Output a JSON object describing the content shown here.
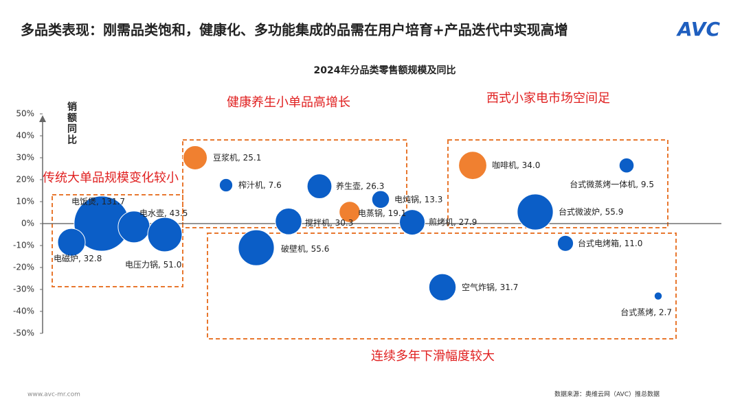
{
  "header": {
    "title": "多品类表现：刚需品类饱和，健康化、多功能集成的品需在用户培育+产品迭代中实现高增",
    "logo": "AVC"
  },
  "footer": {
    "url": "www.avc-mr.com",
    "source": "数据来源：奥维云网（AVC）推总数据"
  },
  "chart_data": {
    "type": "bubble",
    "title": "2024年分品类零售额规模及同比",
    "y_label": "销额同比",
    "annotations": [
      "健康养生小单品高增长",
      "西式小家电市场空间足",
      "传统大单品规模变化较小",
      "连续多年下滑幅度较大"
    ],
    "ylim": [
      -50,
      50
    ],
    "yticks": [
      {
        "value": -50,
        "label": "-50%"
      },
      {
        "value": -40,
        "label": "-40%"
      },
      {
        "value": -30,
        "label": "-30%"
      },
      {
        "value": -20,
        "label": "-20%"
      },
      {
        "value": -10,
        "label": "-10%"
      },
      {
        "value": 0,
        "label": "0%"
      },
      {
        "value": 10,
        "label": "10%"
      },
      {
        "value": 20,
        "label": "20%"
      },
      {
        "value": 30,
        "label": "30%"
      },
      {
        "value": 40,
        "label": "40%"
      },
      {
        "value": 50,
        "label": "50%"
      }
    ],
    "categories": [
      "电饭煲",
      "电水壶",
      "电磁炉",
      "电压力锅",
      "豆浆机",
      "榨汁机",
      "养生壶",
      "电炖锅",
      "电蒸锅",
      "搅拌机",
      "煎烤机",
      "破壁机",
      "空气炸锅",
      "咖啡机",
      "台式微蒸烤一体机",
      "台式微波炉",
      "台式电烤箱",
      "台式蒸烤"
    ],
    "values": [
      0,
      -1.5,
      -8.5,
      -5,
      30,
      17.5,
      17,
      11,
      5.3,
      1,
      0.6,
      -11,
      -29,
      26.5,
      26.5,
      5.3,
      -9,
      -33
    ],
    "sizes": [
      131.7,
      43.5,
      32.8,
      51.0,
      25.1,
      7.6,
      26.3,
      13.3,
      19.1,
      30.3,
      27.9,
      55.6,
      31.7,
      34.0,
      9.5,
      55.9,
      11.0,
      2.7
    ],
    "size_labels": [
      "131.7",
      "43.5",
      "32.8",
      "51.0",
      "25.1",
      "7.6",
      "26.3",
      "13.3",
      "19.1",
      "30.3",
      "27.9",
      "55.6",
      "31.7",
      "34.0",
      "9.5",
      "55.9",
      "11.0",
      "2.7"
    ],
    "colors": [
      "#0b5ec7",
      "#0b5ec7",
      "#0b5ec7",
      "#0b5ec7",
      "#f08030",
      "#0b5ec7",
      "#0b5ec7",
      "#0b5ec7",
      "#f08030",
      "#0b5ec7",
      "#0b5ec7",
      "#0b5ec7",
      "#0b5ec7",
      "#f08030",
      "#0b5ec7",
      "#0b5ec7",
      "#0b5ec7",
      "#0b5ec7"
    ]
  }
}
